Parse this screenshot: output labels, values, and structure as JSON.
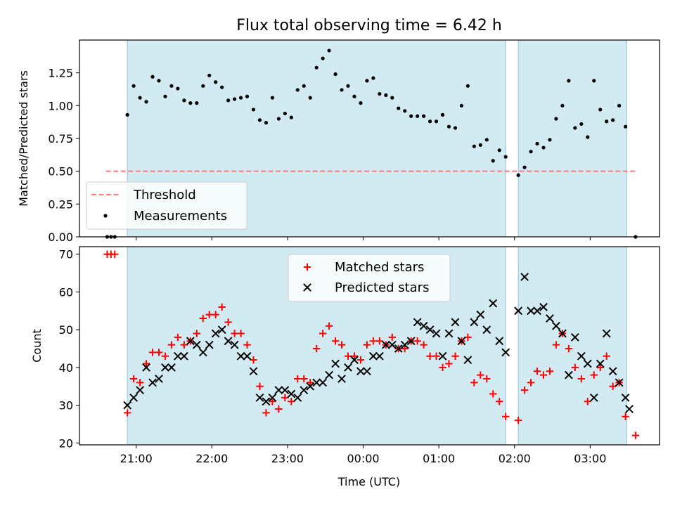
{
  "figure": {
    "title": "Flux total observing time = 6.42 h",
    "xlabel": "Time (UTC)",
    "xtick_labels": [
      "21:00",
      "22:00",
      "23:00",
      "00:00",
      "01:00",
      "02:00",
      "03:00"
    ]
  },
  "chart_data": [
    {
      "type": "scatter",
      "ylabel": "Matched/Predicted stars",
      "xlim": [
        "20:15",
        "03:55"
      ],
      "ylim": [
        0,
        1.5
      ],
      "yticks": [
        0.0,
        0.25,
        0.5,
        0.75,
        1.0,
        1.25
      ],
      "ytick_labels": [
        "0.00",
        "0.25",
        "0.50",
        "0.75",
        "1.00",
        "1.25"
      ],
      "shaded_intervals": [
        [
          "20:53",
          "01:53"
        ],
        [
          "02:03",
          "03:29"
        ]
      ],
      "threshold": 0.5,
      "threshold_range": [
        "20:36",
        "03:36"
      ],
      "legend_position": "lower-left",
      "legend": [
        {
          "label": "Threshold",
          "marker": "dashed-line",
          "color": "#ff7a7a"
        },
        {
          "label": "Measurements",
          "marker": "dot",
          "color": "#000000"
        }
      ],
      "series": [
        {
          "name": "Measurements",
          "color": "#000000",
          "x": [
            "20:37",
            "20:40",
            "20:43",
            "20:53",
            "20:58",
            "21:03",
            "21:08",
            "21:13",
            "21:18",
            "21:23",
            "21:28",
            "21:33",
            "21:38",
            "21:43",
            "21:48",
            "21:53",
            "21:58",
            "22:03",
            "22:08",
            "22:13",
            "22:18",
            "22:23",
            "22:28",
            "22:33",
            "22:38",
            "22:43",
            "22:48",
            "22:53",
            "22:58",
            "23:03",
            "23:08",
            "23:13",
            "23:18",
            "23:23",
            "23:28",
            "23:33",
            "23:38",
            "23:43",
            "23:48",
            "23:53",
            "23:58",
            "00:03",
            "00:08",
            "00:13",
            "00:18",
            "00:23",
            "00:28",
            "00:33",
            "00:38",
            "00:43",
            "00:48",
            "00:53",
            "00:58",
            "01:03",
            "01:08",
            "01:13",
            "01:18",
            "01:23",
            "01:28",
            "01:33",
            "01:38",
            "01:43",
            "01:48",
            "01:53",
            "02:03",
            "02:08",
            "02:13",
            "02:18",
            "02:23",
            "02:28",
            "02:33",
            "02:38",
            "02:43",
            "02:48",
            "02:53",
            "02:58",
            "03:03",
            "03:08",
            "03:13",
            "03:18",
            "03:23",
            "03:28",
            "03:36"
          ],
          "y": [
            0.0,
            0.0,
            0.0,
            0.93,
            1.15,
            1.06,
            1.03,
            1.22,
            1.19,
            1.07,
            1.15,
            1.13,
            1.04,
            1.02,
            1.02,
            1.15,
            1.23,
            1.18,
            1.14,
            1.04,
            1.05,
            1.06,
            1.07,
            0.97,
            0.89,
            0.87,
            1.06,
            0.9,
            0.94,
            0.91,
            1.12,
            1.15,
            1.06,
            1.29,
            1.36,
            1.42,
            1.24,
            1.12,
            1.15,
            1.07,
            1.02,
            1.19,
            1.21,
            1.09,
            1.08,
            1.06,
            0.98,
            0.96,
            0.92,
            0.92,
            0.92,
            0.88,
            0.88,
            0.93,
            0.84,
            0.83,
            1.0,
            1.15,
            0.69,
            0.7,
            0.74,
            0.58,
            0.66,
            0.61,
            0.47,
            0.53,
            0.65,
            0.71,
            0.68,
            0.74,
            0.9,
            1.0,
            1.19,
            0.83,
            0.86,
            0.76,
            1.19,
            0.97,
            0.88,
            0.89,
            1.0,
            0.84,
            0.0
          ]
        }
      ]
    },
    {
      "type": "scatter",
      "ylabel": "Count",
      "xlim": [
        "20:15",
        "03:55"
      ],
      "ylim": [
        19.5,
        72
      ],
      "yticks": [
        20,
        30,
        40,
        50,
        60,
        70
      ],
      "ytick_labels": [
        "20",
        "30",
        "40",
        "50",
        "60",
        "70"
      ],
      "shaded_intervals": [
        [
          "20:53",
          "01:53"
        ],
        [
          "02:03",
          "03:29"
        ]
      ],
      "legend_position": "upper-center",
      "legend": [
        {
          "label": "Matched stars",
          "marker": "plus",
          "color": "#ff0000"
        },
        {
          "label": "Predicted stars",
          "marker": "x",
          "color": "#000000"
        }
      ],
      "x": [
        "20:37",
        "20:40",
        "20:43",
        "20:53",
        "20:58",
        "21:03",
        "21:08",
        "21:13",
        "21:18",
        "21:23",
        "21:28",
        "21:33",
        "21:38",
        "21:43",
        "21:48",
        "21:53",
        "21:58",
        "22:03",
        "22:08",
        "22:13",
        "22:18",
        "22:23",
        "22:28",
        "22:33",
        "22:38",
        "22:43",
        "22:48",
        "22:53",
        "22:58",
        "23:03",
        "23:08",
        "23:13",
        "23:18",
        "23:23",
        "23:28",
        "23:33",
        "23:38",
        "23:43",
        "23:48",
        "23:53",
        "23:58",
        "00:03",
        "00:08",
        "00:13",
        "00:18",
        "00:23",
        "00:28",
        "00:33",
        "00:38",
        "00:43",
        "00:48",
        "00:53",
        "00:58",
        "01:03",
        "01:08",
        "01:13",
        "01:18",
        "01:23",
        "01:28",
        "01:33",
        "01:38",
        "01:43",
        "01:48",
        "01:53",
        "02:03",
        "02:08",
        "02:13",
        "02:18",
        "02:23",
        "02:28",
        "02:33",
        "02:38",
        "02:43",
        "02:48",
        "02:53",
        "02:58",
        "03:03",
        "03:08",
        "03:13",
        "03:18",
        "03:23",
        "03:28",
        "03:36"
      ],
      "series": [
        {
          "name": "Matched stars",
          "color": "#ff0000",
          "values": [
            70,
            70,
            70,
            28,
            37,
            36,
            41,
            44,
            44,
            43,
            46,
            48,
            46,
            47,
            49,
            53,
            54,
            54,
            56,
            52,
            49,
            49,
            46,
            42,
            35,
            28,
            31,
            29,
            32,
            31,
            37,
            37,
            36,
            45,
            49,
            51,
            47,
            46,
            43,
            43,
            42,
            46,
            47,
            47,
            46,
            48,
            45,
            45,
            47,
            47,
            46,
            43,
            43,
            40,
            41,
            43,
            47,
            48,
            36,
            38,
            37,
            33,
            31,
            27,
            26,
            34,
            36,
            39,
            38,
            39,
            46,
            49,
            45,
            40,
            37,
            31,
            38,
            40,
            43,
            35,
            36,
            27,
            22
          ]
        },
        {
          "name": "Predicted stars",
          "color": "#000000",
          "x": [
            "20:53",
            "20:58",
            "21:03",
            "21:08",
            "21:13",
            "21:18",
            "21:23",
            "21:28",
            "21:33",
            "21:38",
            "21:43",
            "21:48",
            "21:53",
            "21:58",
            "22:03",
            "22:08",
            "22:13",
            "22:18",
            "22:23",
            "22:28",
            "22:33",
            "22:38",
            "22:43",
            "22:48",
            "22:53",
            "22:58",
            "23:03",
            "23:08",
            "23:13",
            "23:18",
            "23:23",
            "23:28",
            "23:33",
            "23:38",
            "23:43",
            "23:48",
            "23:53",
            "23:58",
            "00:03",
            "00:08",
            "00:13",
            "00:18",
            "00:23",
            "00:28",
            "00:33",
            "00:38",
            "00:43",
            "00:48",
            "00:53",
            "00:58",
            "01:03",
            "01:08",
            "01:13",
            "01:18",
            "01:23",
            "01:28",
            "01:33",
            "01:38",
            "01:43",
            "01:48",
            "01:53",
            "02:03",
            "02:08",
            "02:13",
            "02:18",
            "02:23",
            "02:28",
            "02:33",
            "02:38",
            "02:43",
            "02:48",
            "02:53",
            "02:58",
            "03:03",
            "03:08",
            "03:13",
            "03:18",
            "03:23",
            "03:28",
            "03:31"
          ],
          "values": [
            30,
            32,
            34,
            40,
            36,
            37,
            40,
            40,
            43,
            43,
            47,
            46,
            44,
            46,
            49,
            50,
            47,
            46,
            43,
            43,
            39,
            32,
            31,
            32,
            34,
            34,
            33,
            32,
            34,
            35,
            36,
            36,
            38,
            41,
            37,
            40,
            42,
            39,
            39,
            43,
            43,
            46,
            46,
            45,
            46,
            47,
            52,
            51,
            50,
            49,
            43,
            49,
            52,
            47,
            42,
            52,
            54,
            50,
            57,
            47,
            44,
            55,
            64,
            55,
            55,
            56,
            53,
            51,
            49,
            38,
            48,
            43,
            41,
            32,
            41,
            49,
            39,
            36,
            32,
            29
          ]
        }
      ]
    }
  ]
}
